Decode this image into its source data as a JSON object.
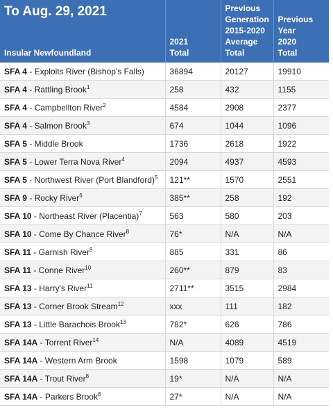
{
  "header": {
    "title": "To Aug. 29, 2021",
    "region": "Insular Newfoundland",
    "col_2021": [
      "2021",
      "Total"
    ],
    "col_prev_gen": [
      "Previous",
      "Generation",
      "2015-2020",
      "Average",
      "Total"
    ],
    "col_prev_year": [
      "Previous",
      "Year",
      "2020",
      "Total"
    ]
  },
  "rows": [
    {
      "sfa": "SFA 4",
      "river": "Exploits River (Bishop's Falls)",
      "note": "",
      "t2021": "36894",
      "avg": "20127",
      "t2020": "19910"
    },
    {
      "sfa": "SFA 4",
      "river": "Rattling Brook",
      "note": "1",
      "t2021": "258",
      "avg": "432",
      "t2020": "1155"
    },
    {
      "sfa": "SFA 4",
      "river": "Campbellton River",
      "note": "2",
      "t2021": "4584",
      "avg": "2908",
      "t2020": "2377"
    },
    {
      "sfa": "SFA 4",
      "river": "Salmon Brook",
      "note": "3",
      "t2021": "674",
      "avg": "1044",
      "t2020": "1096"
    },
    {
      "sfa": "SFA 5",
      "river": "Middle Brook",
      "note": "",
      "t2021": "1736",
      "avg": "2618",
      "t2020": "1922"
    },
    {
      "sfa": "SFA 5",
      "river": "Lower Terra Nova River",
      "note": "4",
      "t2021": "2094",
      "avg": "4937",
      "t2020": "4593"
    },
    {
      "sfa": "SFA 5",
      "river": "Northwest River (Port Blandford)",
      "note": "5",
      "t2021": "121**",
      "avg": "1570",
      "t2020": "2551"
    },
    {
      "sfa": "SFA 9",
      "river": "Rocky River",
      "note": "6",
      "t2021": "385**",
      "avg": "258",
      "t2020": "192"
    },
    {
      "sfa": "SFA 10",
      "river": "Northeast River (Placentia)",
      "note": "7",
      "t2021": "563",
      "avg": "580",
      "t2020": "203"
    },
    {
      "sfa": "SFA 10",
      "river": "Come By Chance River",
      "note": "8",
      "t2021": "76*",
      "avg": "N/A",
      "t2020": "N/A"
    },
    {
      "sfa": "SFA 11",
      "river": "Garnish River",
      "note": "9",
      "t2021": "885",
      "avg": "331",
      "t2020": "86"
    },
    {
      "sfa": "SFA 11",
      "river": "Conne River",
      "note": "10",
      "t2021": "260**",
      "avg": "879",
      "t2020": "83"
    },
    {
      "sfa": "SFA 13",
      "river": "Harry's River",
      "note": "11",
      "t2021": "2711**",
      "avg": "3515",
      "t2020": "2984"
    },
    {
      "sfa": "SFA 13",
      "river": "Corner Brook Stream",
      "note": "12",
      "t2021": "xxx",
      "avg": "111",
      "t2020": "182"
    },
    {
      "sfa": "SFA 13",
      "river": "Little Barachois Brook",
      "note": "13",
      "t2021": "782*",
      "avg": "626",
      "t2020": "786"
    },
    {
      "sfa": "SFA 14A",
      "river": "Torrent River",
      "note": "14",
      "t2021": "N/A",
      "avg": "4089",
      "t2020": "4519"
    },
    {
      "sfa": "SFA 14A",
      "river": "Western Arm Brook",
      "note": "",
      "t2021": "1598",
      "avg": "1079",
      "t2020": "589"
    },
    {
      "sfa": "SFA 14A",
      "river": "Trout River",
      "note": "8",
      "t2021": "19*",
      "avg": "N/A",
      "t2020": "N/A"
    },
    {
      "sfa": "SFA 14A",
      "river": "Parkers Brook",
      "note": "8",
      "t2021": "27*",
      "avg": "N/A",
      "t2020": "N/A"
    }
  ]
}
